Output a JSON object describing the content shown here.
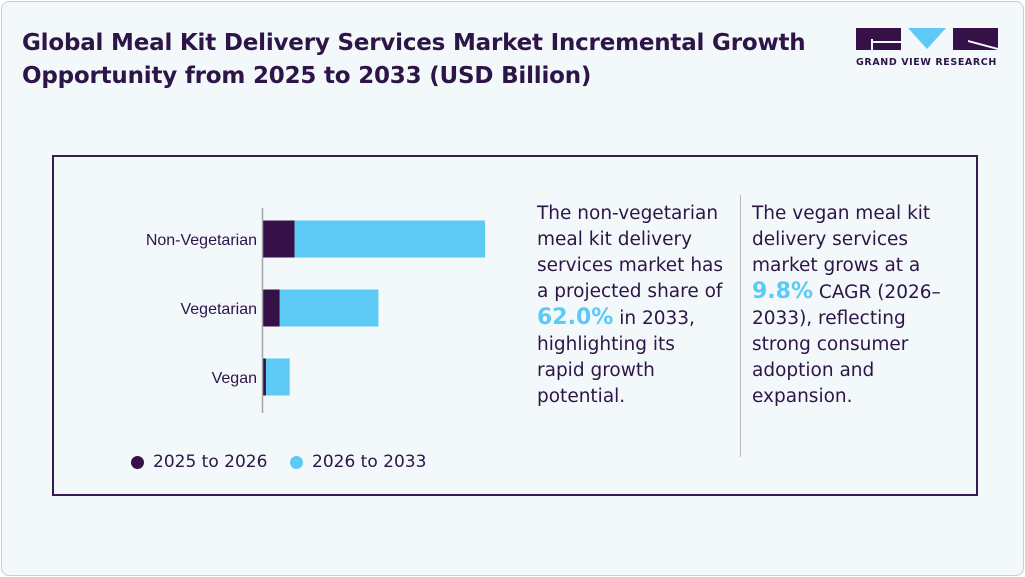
{
  "title": "Global Meal Kit Delivery Services Market Incremental Growth Opportunity from 2025 to 2033 (USD Billion)",
  "logo": {
    "text": "GRAND VIEW RESEARCH"
  },
  "colors": {
    "dark": "#351148",
    "light": "#5ccaf5",
    "text": "#2e1547"
  },
  "chart_data": {
    "type": "bar",
    "orientation": "horizontal",
    "stacked": true,
    "categories": [
      "Non-Vegetarian",
      "Vegetarian",
      "Vegan"
    ],
    "series": [
      {
        "name": "2025 to 2026",
        "color": "#351148",
        "values": [
          3.2,
          1.7,
          0.3
        ]
      },
      {
        "name": "2026 to 2033",
        "color": "#5ccaf5",
        "values": [
          19.3,
          10.0,
          2.4
        ]
      }
    ],
    "xlim": [
      0,
      22.5
    ],
    "grid": false,
    "x_axis_labels": false,
    "legend_position": "bottom"
  },
  "insight_left": {
    "before": "The non-vegetarian meal kit delivery services market has a projected share of ",
    "highlight": "62.0%",
    "after": " in 2033, highlighting its rapid growth potential."
  },
  "insight_right": {
    "before": "The vegan meal kit delivery services market grows at a ",
    "highlight": "9.8%",
    "after": " CAGR (2026–2033), reflecting strong consumer adoption and expansion."
  }
}
